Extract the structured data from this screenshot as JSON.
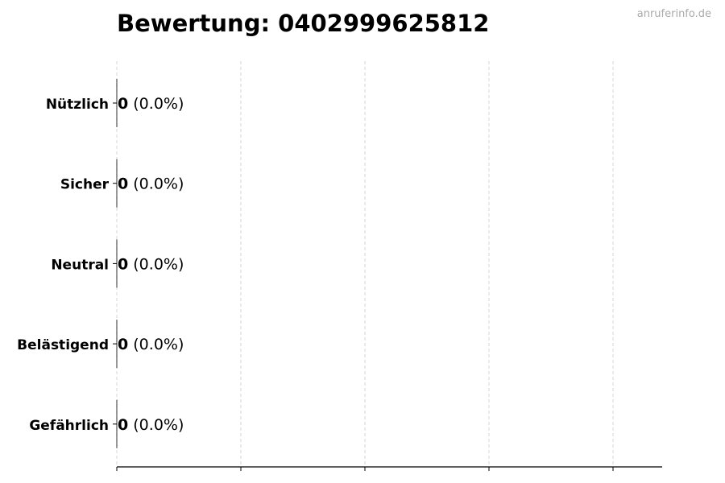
{
  "chart_data": {
    "type": "bar",
    "orientation": "horizontal",
    "title": "Bewertung: 0402999625812",
    "watermark": "anruferinfo.de",
    "categories": [
      "Nützlich",
      "Sicher",
      "Neutral",
      "Belästigend",
      "Gefährlich"
    ],
    "values": [
      0,
      0,
      0,
      0,
      0
    ],
    "percent_labels": [
      "(0.0%)",
      "(0.0%)",
      "(0.0%)",
      "(0.0%)",
      "(0.0%)"
    ],
    "xlim": [
      0,
      4.4
    ],
    "x_ticks": [
      0,
      1,
      2,
      3,
      4
    ],
    "x_tick_labels_shown": false,
    "grid": "vertical dashed",
    "colors": {
      "bar_edge": "#000000",
      "grid": "#cccccc",
      "watermark": "#aaaaaa"
    }
  }
}
